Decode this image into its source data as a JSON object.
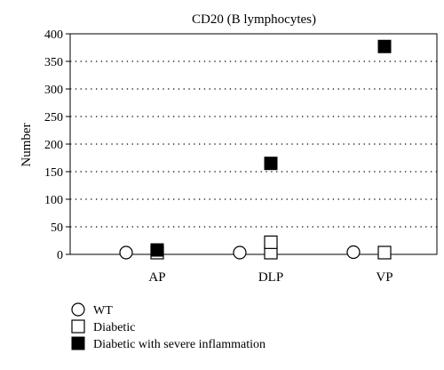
{
  "chart_data": {
    "type": "scatter",
    "title": "CD20 (B lymphocytes)",
    "xlabel": "",
    "ylabel": "Number",
    "ylim": [
      0,
      400
    ],
    "yticks": [
      0,
      50,
      100,
      150,
      200,
      250,
      300,
      350,
      400
    ],
    "categories": [
      "AP",
      "DLP",
      "VP"
    ],
    "grid": "horizontal-dotted",
    "legend_position": "bottom-left",
    "series": [
      {
        "name": "WT",
        "marker": "open-circle",
        "points": [
          {
            "category": "AP",
            "y": 2
          },
          {
            "category": "DLP",
            "y": 2
          },
          {
            "category": "VP",
            "y": 4
          }
        ]
      },
      {
        "name": "Diabetic",
        "marker": "open-square",
        "points": [
          {
            "category": "AP",
            "y": 1
          },
          {
            "category": "DLP",
            "y": 1
          },
          {
            "category": "DLP",
            "y": 22
          },
          {
            "category": "VP",
            "y": 2
          }
        ]
      },
      {
        "name": "Diabetic with severe inflammation",
        "marker": "filled-square",
        "points": [
          {
            "category": "AP",
            "y": 8
          },
          {
            "category": "DLP",
            "y": 165
          },
          {
            "category": "VP",
            "y": 377
          }
        ]
      }
    ]
  }
}
